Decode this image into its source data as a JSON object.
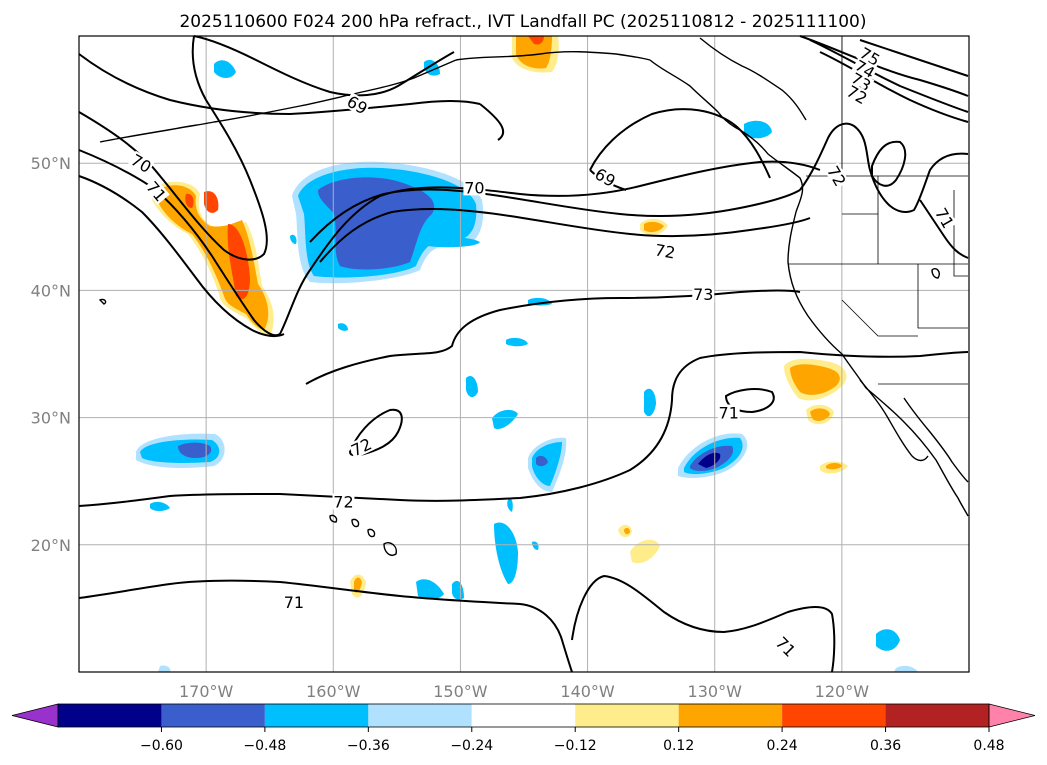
{
  "title": "2025110600 F024 200 hPa refract., IVT Landfall PC (2025110812 - 2025111100)",
  "map": {
    "lon_range": [
      -180,
      -110
    ],
    "lat_range": [
      10,
      60
    ],
    "lat_ticks": [
      {
        "value": 20,
        "label": "20°N"
      },
      {
        "value": 30,
        "label": "30°N"
      },
      {
        "value": 40,
        "label": "40°N"
      },
      {
        "value": 50,
        "label": "50°N"
      }
    ],
    "lon_ticks": [
      {
        "value": -170,
        "label": "170°W"
      },
      {
        "value": -160,
        "label": "160°W"
      },
      {
        "value": -150,
        "label": "150°W"
      },
      {
        "value": -140,
        "label": "140°W"
      },
      {
        "value": -130,
        "label": "130°W"
      },
      {
        "value": -120,
        "label": "120°W"
      }
    ],
    "contour_labels": [
      {
        "text": "75",
        "lon": -117.8,
        "lat": 58.4,
        "rot": 30
      },
      {
        "text": "74",
        "lon": -118.2,
        "lat": 57.4,
        "rot": 30
      },
      {
        "text": "73",
        "lon": -118.5,
        "lat": 56.4,
        "rot": 30
      },
      {
        "text": "72",
        "lon": -118.8,
        "lat": 55.4,
        "rot": 30
      },
      {
        "text": "69",
        "lon": -158.1,
        "lat": 54.6,
        "rot": 30
      },
      {
        "text": "70",
        "lon": -175.1,
        "lat": 50.0,
        "rot": 30
      },
      {
        "text": "71",
        "lon": -173.9,
        "lat": 47.8,
        "rot": 50
      },
      {
        "text": "70",
        "lon": -148.9,
        "lat": 48.1,
        "rot": 0
      },
      {
        "text": "69",
        "lon": -138.6,
        "lat": 48.9,
        "rot": 30
      },
      {
        "text": "72",
        "lon": -120.4,
        "lat": 49.0,
        "rot": 60
      },
      {
        "text": "71",
        "lon": -111.9,
        "lat": 45.7,
        "rot": 60
      },
      {
        "text": "72",
        "lon": -133.9,
        "lat": 43.1,
        "rot": 10
      },
      {
        "text": "73",
        "lon": -130.9,
        "lat": 39.7,
        "rot": 0
      },
      {
        "text": "71",
        "lon": -128.9,
        "lat": 30.4,
        "rot": 0
      },
      {
        "text": "72",
        "lon": -157.8,
        "lat": 27.7,
        "rot": -25
      },
      {
        "text": "72",
        "lon": -159.2,
        "lat": 23.4,
        "rot": 0
      },
      {
        "text": "71",
        "lon": -163.1,
        "lat": 15.5,
        "rot": 0
      },
      {
        "text": "71",
        "lon": -124.4,
        "lat": 12.0,
        "rot": 45
      }
    ]
  },
  "colorbar": {
    "colors": [
      "#9932cc",
      "#00008b",
      "#3a5fcd",
      "#00bfff",
      "#b0e2ff",
      "#ffffff",
      "#ffec8b",
      "#ffa500",
      "#ff4500",
      "#b22222",
      "#ff82ab"
    ],
    "boundaries": [
      -0.6,
      -0.48,
      -0.36,
      -0.24,
      -0.12,
      0.12,
      0.24,
      0.36,
      0.48,
      0.6
    ],
    "tick_labels": [
      "−0.60",
      "−0.48",
      "−0.36",
      "−0.24",
      "−0.12",
      "0.12",
      "0.24",
      "0.36",
      "0.48",
      "0.60"
    ]
  },
  "chart_data": {
    "type": "heatmap",
    "title": "2025110600 F024 200 hPa refract., IVT Landfall PC (2025110812 - 2025111100)",
    "xlabel": "",
    "ylabel": "",
    "xlim": [
      -180,
      -110
    ],
    "ylim": [
      10,
      60
    ],
    "levels": [
      -0.6,
      -0.48,
      -0.36,
      -0.24,
      -0.12,
      0.12,
      0.24,
      0.36,
      0.48,
      0.6
    ],
    "contour_levels_labeled": [
      69,
      70,
      71,
      72,
      73,
      74,
      75
    ],
    "anomalies": [
      {
        "sign": "negative",
        "lon": -156.5,
        "lat": 45.5,
        "min": -0.48
      },
      {
        "sign": "negative",
        "lon": -171.5,
        "lat": 27.5,
        "min": -0.48
      },
      {
        "sign": "negative",
        "lon": -130.5,
        "lat": 26.5,
        "min": -0.6
      },
      {
        "sign": "negative",
        "lon": -143.5,
        "lat": 25.5,
        "min": -0.48
      },
      {
        "sign": "positive",
        "lon": -168.5,
        "lat": 43.5,
        "max": 0.48
      },
      {
        "sign": "positive",
        "lon": -122.0,
        "lat": 33.0,
        "max": 0.36
      },
      {
        "sign": "positive",
        "lon": -144.0,
        "lat": 59.0,
        "max": 0.48
      }
    ]
  }
}
